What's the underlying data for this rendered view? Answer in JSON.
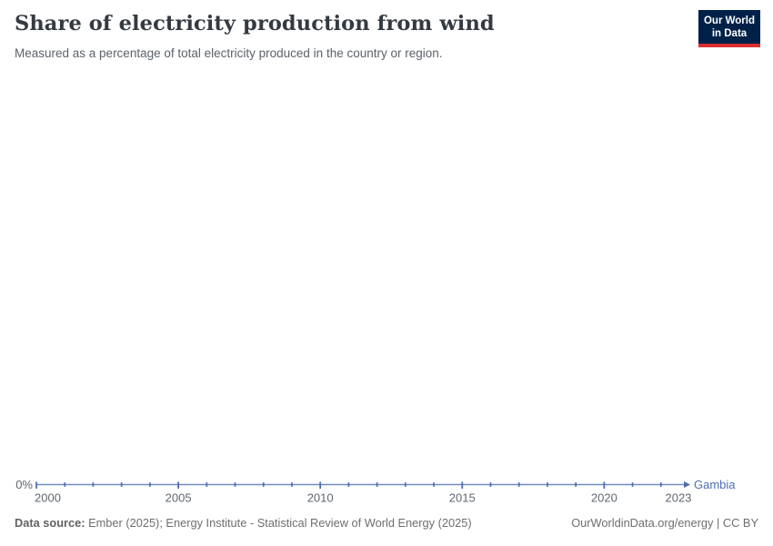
{
  "header": {
    "title": "Share of electricity production from wind",
    "subtitle": "Measured as a percentage of total electricity produced in the country or region.",
    "logo": {
      "line1": "Our World",
      "line2": "in Data",
      "bg": "#002147",
      "stripe": "#dc2e32"
    }
  },
  "chart_data": {
    "type": "line",
    "title": "Share of electricity production from wind",
    "subtitle": "Measured as a percentage of total electricity produced in the country or region.",
    "unit": "%",
    "x": [
      2000,
      2001,
      2002,
      2003,
      2004,
      2005,
      2006,
      2007,
      2008,
      2009,
      2010,
      2011,
      2012,
      2013,
      2014,
      2015,
      2016,
      2017,
      2018,
      2019,
      2020,
      2021,
      2022,
      2023
    ],
    "series": [
      {
        "name": "Gambia",
        "color": "#4e6fb0",
        "values": [
          0,
          0,
          0,
          0,
          0,
          0,
          0,
          0,
          0,
          0,
          0,
          0,
          0,
          0,
          0,
          0,
          0,
          0,
          0,
          0,
          0,
          0,
          0,
          0
        ]
      }
    ],
    "x_ticks": [
      2000,
      2005,
      2010,
      2015,
      2020,
      2023
    ],
    "y_tick_labels": [
      "0%"
    ],
    "xlim": [
      2000,
      2023
    ],
    "ylim": [
      0,
      0
    ],
    "grid": false,
    "legend_position": "end-of-line",
    "tick_label_color": "#5f6770"
  },
  "footer": {
    "source_label": "Data source:",
    "source_text": " Ember (2025); Energy Institute - Statistical Review of World Energy (2025)",
    "link_text": "OurWorldinData.org/energy | CC BY"
  }
}
